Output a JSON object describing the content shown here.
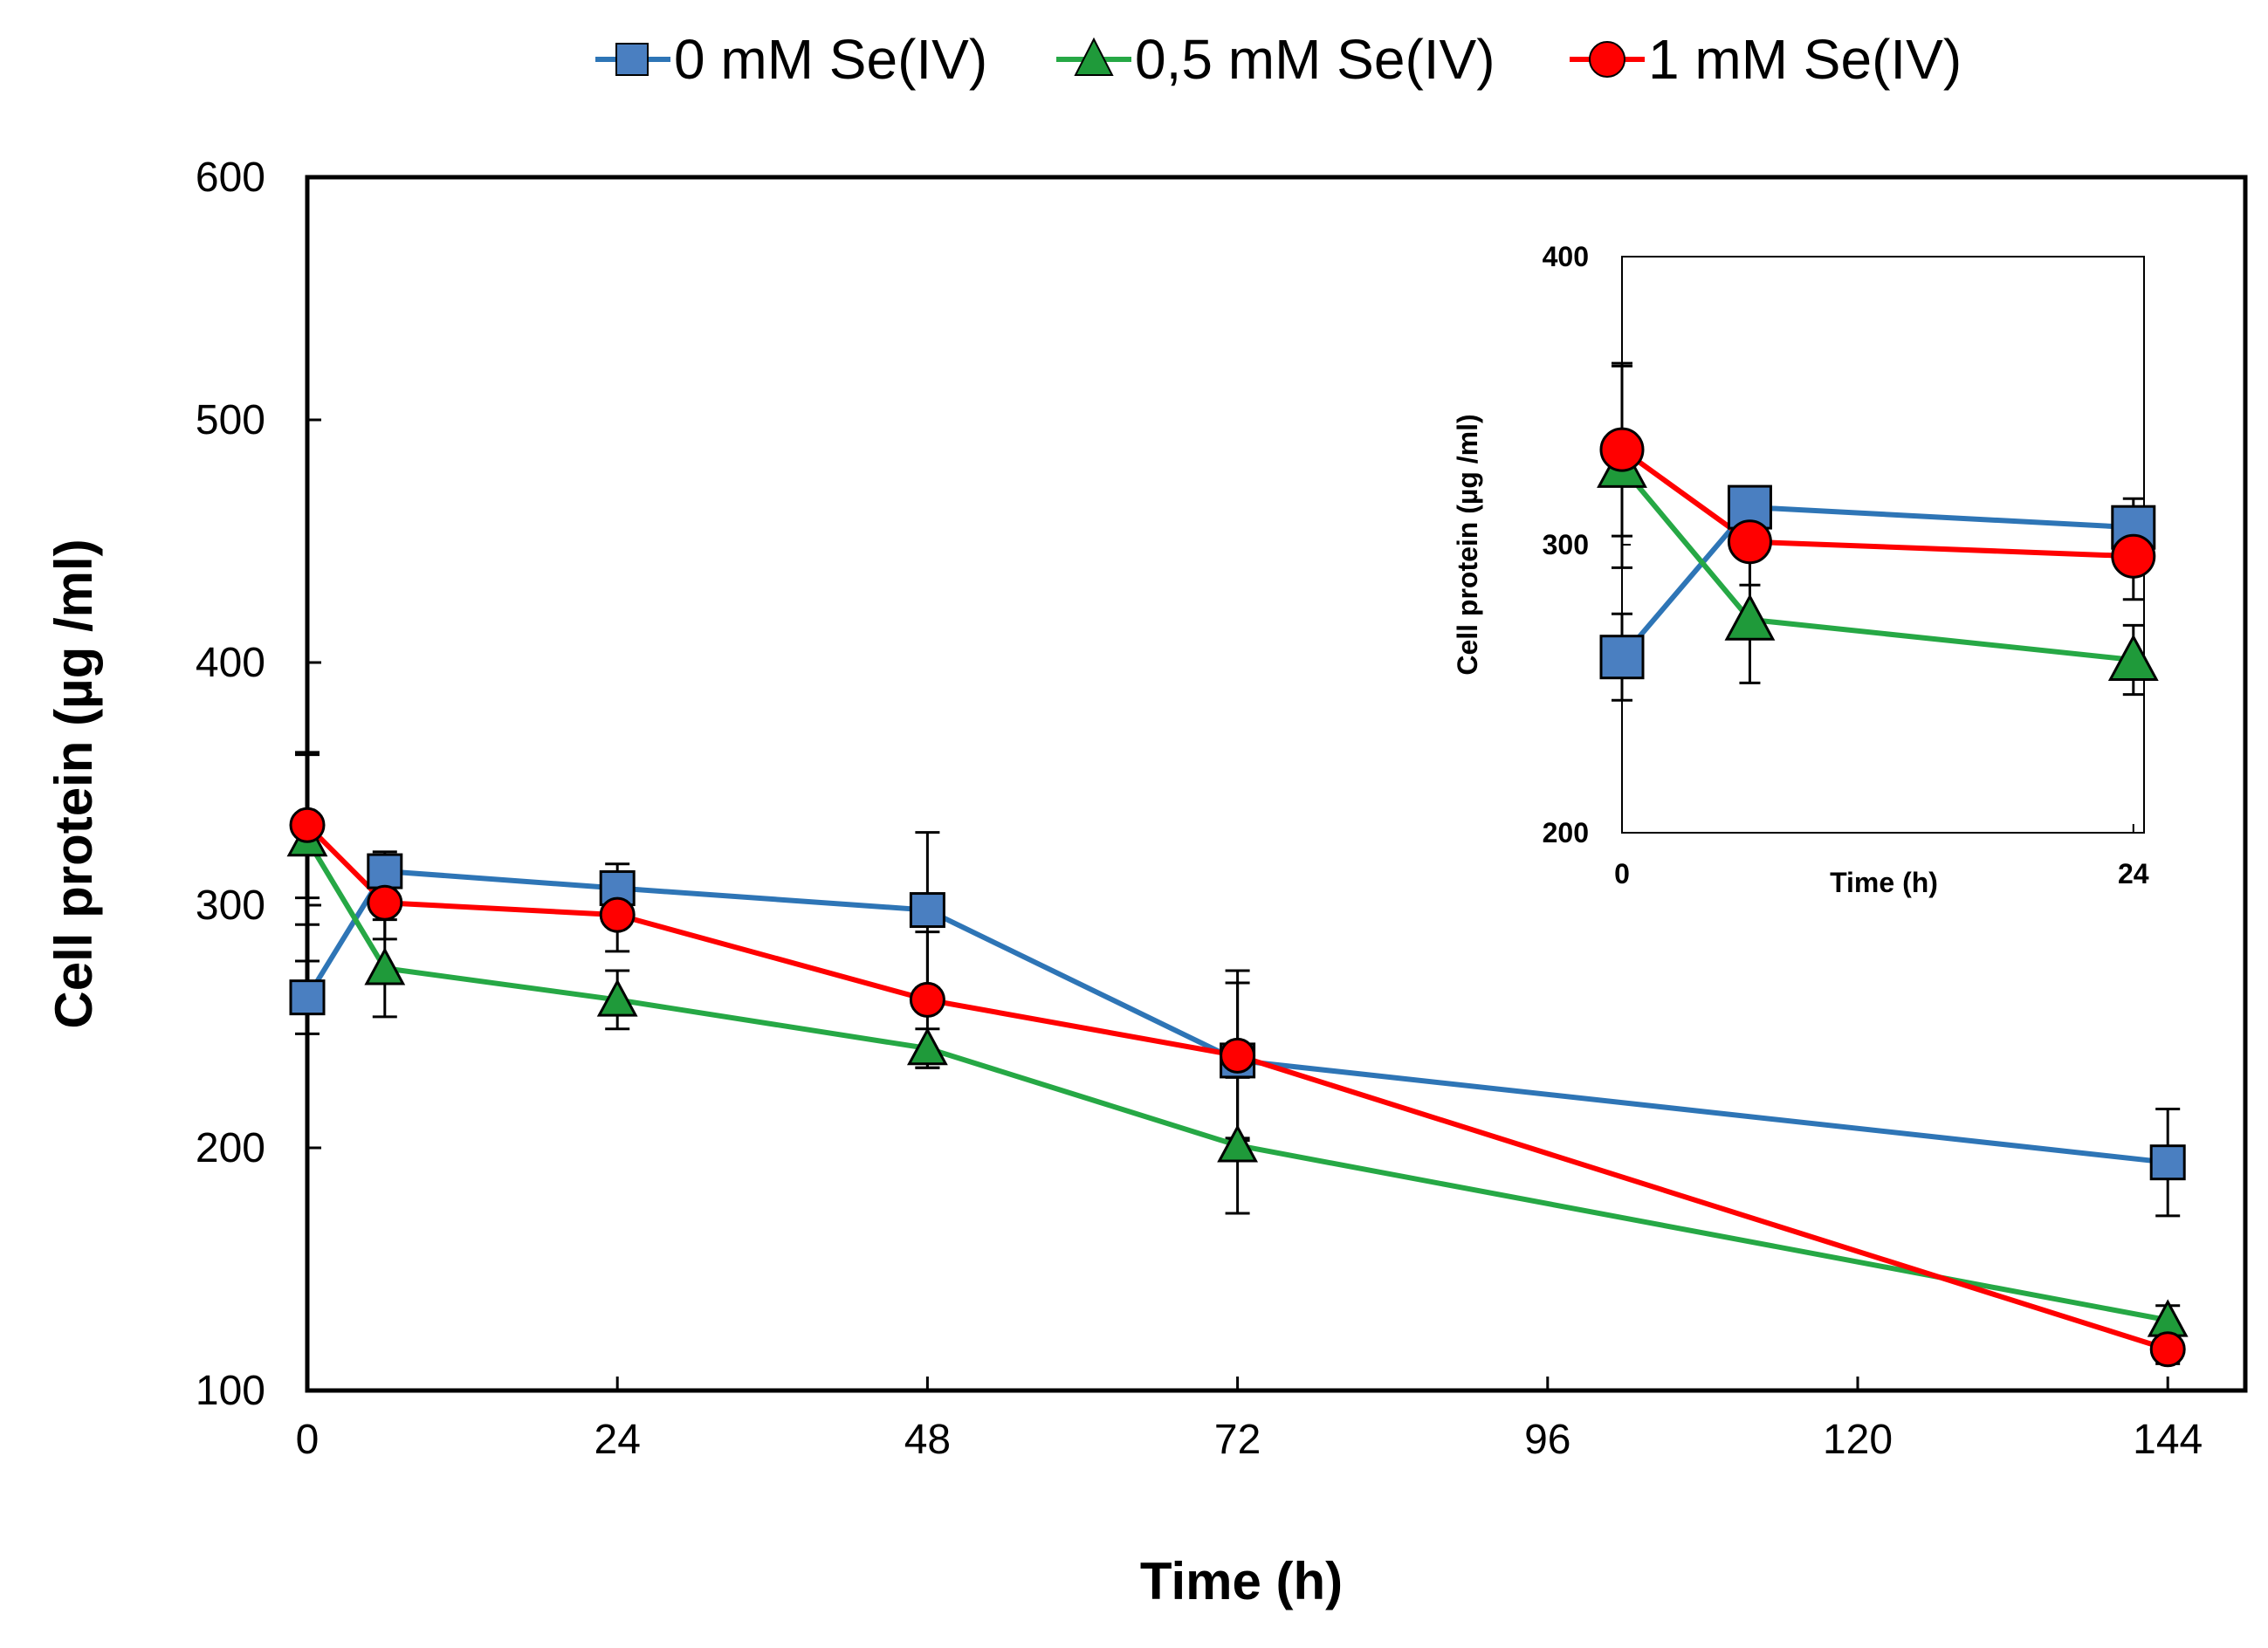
{
  "chart_data": [
    {
      "type": "line",
      "title": "",
      "xlabel": "Time (h)",
      "ylabel": "Cell protein (µg /ml)",
      "xlim": [
        0,
        150
      ],
      "ylim": [
        100,
        600
      ],
      "xticks": [
        0,
        24,
        48,
        72,
        96,
        120,
        144
      ],
      "yticks": [
        100,
        200,
        300,
        400,
        500,
        600
      ],
      "xtick_labels": [
        "0",
        "24",
        "48",
        "72",
        "96",
        "120",
        "144"
      ],
      "ytick_labels": [
        "100",
        "200",
        "300",
        "400",
        "500",
        "600"
      ],
      "grid": false,
      "legend_position": "top",
      "series": [
        {
          "name": "0 mM Se(IV)",
          "color": "#2e75b6",
          "fill": "#4a7fc1",
          "marker": "square",
          "x": [
            0,
            6,
            24,
            48,
            72,
            144
          ],
          "y": [
            262,
            314,
            307,
            298,
            236,
            194
          ],
          "err": [
            15,
            8,
            10,
            32,
            32,
            22
          ]
        },
        {
          "name": "0,5 mM Se(IV)",
          "color": "#26a845",
          "fill": "#1f9a3a",
          "marker": "triangle",
          "x": [
            0,
            6,
            24,
            48,
            72,
            144
          ],
          "y": [
            327,
            274,
            261,
            241,
            201,
            129
          ],
          "err": [
            35,
            20,
            12,
            8,
            28,
            6
          ]
        },
        {
          "name": "1 mM Se(IV)",
          "color": "#ff0000",
          "fill": "#ff0000",
          "marker": "circle",
          "x": [
            0,
            6,
            24,
            48,
            72,
            144
          ],
          "y": [
            333,
            301,
            296,
            261,
            238,
            117
          ],
          "err": [
            30,
            15,
            15,
            28,
            35,
            6
          ]
        }
      ]
    },
    {
      "type": "line",
      "title": "",
      "xlabel": "Time (h)",
      "ylabel": "Cell protein (µg /ml)",
      "xlim": [
        0,
        24.5
      ],
      "ylim": [
        200,
        400
      ],
      "xticks": [
        0,
        24
      ],
      "yticks": [
        200,
        300,
        400
      ],
      "xtick_labels": [
        "0",
        "24"
      ],
      "ytick_labels": [
        "200",
        "300",
        "400"
      ],
      "grid": false,
      "series": [
        {
          "name": "0 mM Se(IV)",
          "color": "#2e75b6",
          "fill": "#4a7fc1",
          "marker": "square",
          "x": [
            0,
            6,
            24
          ],
          "y": [
            261,
            313,
            306
          ],
          "err": [
            15,
            5,
            10
          ]
        },
        {
          "name": "0,5 mM Se(IV)",
          "color": "#26a845",
          "fill": "#1f9a3a",
          "marker": "triangle",
          "x": [
            0,
            6,
            24
          ],
          "y": [
            327,
            274,
            260
          ],
          "err": [
            35,
            22,
            12
          ]
        },
        {
          "name": "1 mM Se(IV)",
          "color": "#ff0000",
          "fill": "#ff0000",
          "marker": "circle",
          "x": [
            0,
            6,
            24
          ],
          "y": [
            333,
            301,
            296
          ],
          "err": [
            30,
            15,
            15
          ]
        }
      ]
    }
  ]
}
